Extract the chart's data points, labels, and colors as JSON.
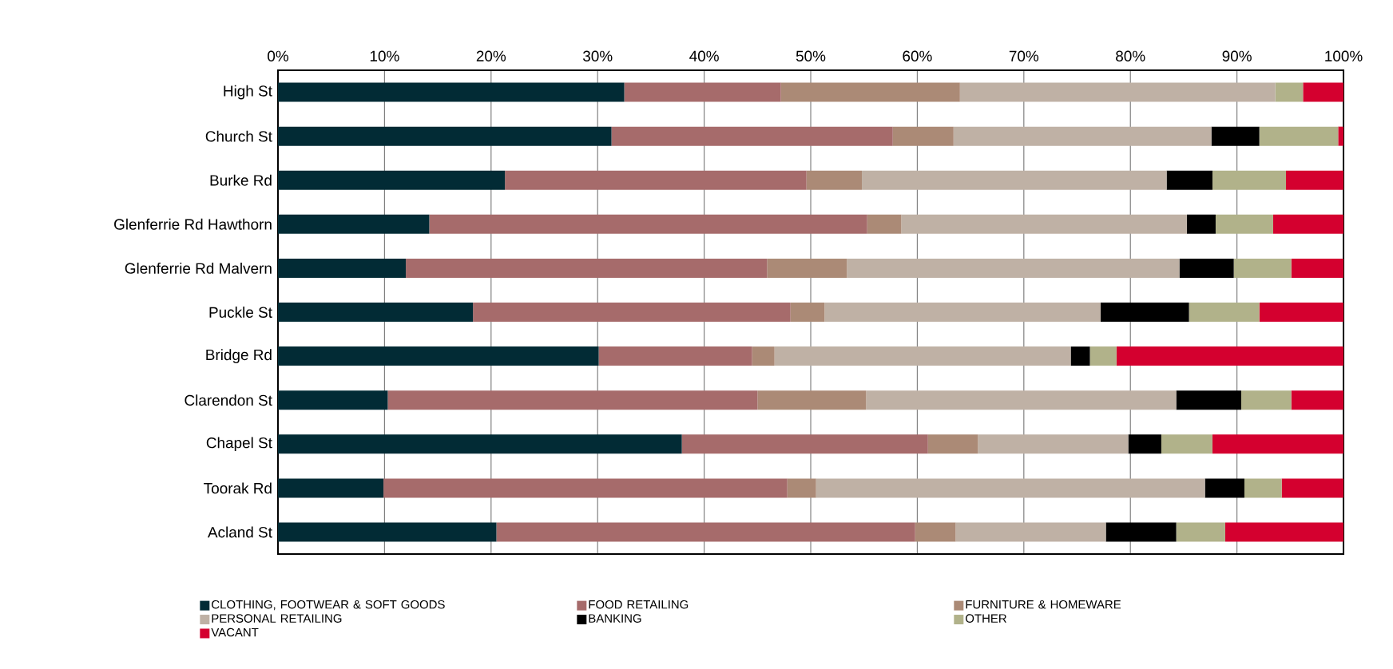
{
  "chart_data": {
    "type": "bar",
    "orientation": "horizontal",
    "stacked": true,
    "categories": [
      "High St",
      "Church St",
      "Burke Rd",
      "Glenferrie Rd Hawthorn",
      "Glenferrie Rd Malvern",
      "Puckle St",
      "Bridge Rd",
      "Clarendon St",
      "Chapel St",
      "Toorak Rd",
      "Acland St"
    ],
    "series": [
      {
        "name": "CLOTHING, FOOTWEAR & SOFT GOODS",
        "color": "#022b35",
        "values": [
          32.5,
          31.3,
          21.3,
          14.2,
          12.0,
          18.3,
          30.1,
          10.3,
          37.9,
          9.9,
          20.5
        ]
      },
      {
        "name": "FOOD RETAILING",
        "color": "#a66b6b",
        "values": [
          14.7,
          26.4,
          28.3,
          41.1,
          33.9,
          29.8,
          14.4,
          34.7,
          23.1,
          37.9,
          39.3
        ]
      },
      {
        "name": "FURNITURE & HOMEWARE",
        "color": "#ab8a76",
        "values": [
          16.8,
          5.7,
          5.2,
          3.2,
          7.5,
          3.2,
          2.1,
          10.2,
          4.7,
          2.7,
          3.8
        ]
      },
      {
        "name": "PERSONAL RETAILING",
        "color": "#bfb1a5",
        "values": [
          29.6,
          24.2,
          28.6,
          26.8,
          31.2,
          25.9,
          27.8,
          29.1,
          14.1,
          36.5,
          14.1
        ]
      },
      {
        "name": "BANKING",
        "color": "#000000",
        "values": [
          0,
          4.5,
          4.3,
          2.7,
          5.1,
          8.3,
          1.8,
          6.1,
          3.1,
          3.7,
          6.6
        ]
      },
      {
        "name": "OTHER",
        "color": "#b1b28a",
        "values": [
          2.6,
          7.4,
          6.9,
          5.4,
          5.4,
          6.6,
          2.5,
          4.7,
          4.8,
          3.5,
          4.6
        ]
      },
      {
        "name": "VACANT",
        "color": "#d4002f",
        "values": [
          3.8,
          0.5,
          5.4,
          6.6,
          4.9,
          7.9,
          21.3,
          4.9,
          12.3,
          5.8,
          11.1
        ]
      }
    ],
    "xlim": [
      0,
      100
    ],
    "xticks": [
      {
        "value": 0,
        "label": "0%"
      },
      {
        "value": 10,
        "label": "10%"
      },
      {
        "value": 20,
        "label": "20%"
      },
      {
        "value": 30,
        "label": "30%"
      },
      {
        "value": 40,
        "label": "40%"
      },
      {
        "value": 50,
        "label": "50%"
      },
      {
        "value": 60,
        "label": "60%"
      },
      {
        "value": 70,
        "label": "70%"
      },
      {
        "value": 80,
        "label": "80%"
      },
      {
        "value": 90,
        "label": "90%"
      },
      {
        "value": 100,
        "label": "100%"
      }
    ],
    "grid": "x",
    "legend": "bottom"
  }
}
